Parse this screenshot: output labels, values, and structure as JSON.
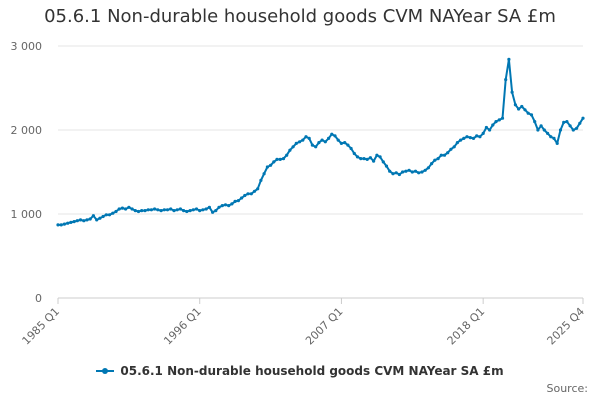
{
  "chart_data": {
    "type": "line",
    "title": "05.6.1 Non-durable household goods CVM NAYear SA £m",
    "xlabel": "",
    "ylabel": "",
    "ylim": [
      0,
      3000
    ],
    "yticks": [
      0,
      1000,
      2000,
      3000
    ],
    "ytick_labels": [
      "0",
      "1 000",
      "2 000",
      "3 000"
    ],
    "x_start": "1985 Q1",
    "x_end": "2025 Q4",
    "xticks": [
      {
        "index": 0,
        "label": "1985 Q1"
      },
      {
        "index": 44,
        "label": "1996 Q1"
      },
      {
        "index": 88,
        "label": "2007 Q1"
      },
      {
        "index": 132,
        "label": "2018 Q1"
      },
      {
        "index": 163,
        "label": "2025 Q4"
      }
    ],
    "grid": true,
    "legend_position": "bottom",
    "line_color": "#0077b3",
    "series": [
      {
        "name": "05.6.1 Non-durable household goods CVM NAYear SA £m",
        "values": [
          870,
          870,
          880,
          890,
          900,
          910,
          920,
          930,
          920,
          930,
          940,
          980,
          930,
          950,
          970,
          990,
          990,
          1010,
          1030,
          1060,
          1070,
          1060,
          1080,
          1060,
          1040,
          1030,
          1040,
          1040,
          1050,
          1050,
          1060,
          1050,
          1040,
          1050,
          1050,
          1060,
          1040,
          1050,
          1060,
          1040,
          1030,
          1040,
          1050,
          1060,
          1040,
          1050,
          1060,
          1080,
          1020,
          1040,
          1080,
          1100,
          1110,
          1100,
          1120,
          1150,
          1160,
          1190,
          1220,
          1240,
          1240,
          1270,
          1300,
          1400,
          1480,
          1560,
          1580,
          1620,
          1650,
          1650,
          1660,
          1700,
          1760,
          1800,
          1840,
          1860,
          1880,
          1920,
          1900,
          1820,
          1800,
          1850,
          1880,
          1860,
          1900,
          1950,
          1930,
          1880,
          1840,
          1850,
          1820,
          1780,
          1720,
          1680,
          1660,
          1660,
          1650,
          1670,
          1630,
          1700,
          1680,
          1620,
          1570,
          1510,
          1480,
          1490,
          1470,
          1500,
          1510,
          1520,
          1500,
          1510,
          1490,
          1500,
          1520,
          1550,
          1600,
          1640,
          1660,
          1700,
          1700,
          1730,
          1770,
          1800,
          1850,
          1880,
          1900,
          1920,
          1910,
          1900,
          1930,
          1920,
          1960,
          2030,
          2000,
          2060,
          2100,
          2120,
          2140,
          2600,
          2840,
          2450,
          2300,
          2250,
          2280,
          2240,
          2200,
          2180,
          2100,
          2000,
          2050,
          2000,
          1960,
          1920,
          1900,
          1840,
          2000,
          2090,
          2100,
          2050,
          2000,
          2020,
          2080,
          2140
        ]
      }
    ]
  },
  "legend": {
    "label": "05.6.1 Non-durable household goods CVM NAYear SA £m"
  },
  "footer": {
    "source_label": "Source:"
  }
}
